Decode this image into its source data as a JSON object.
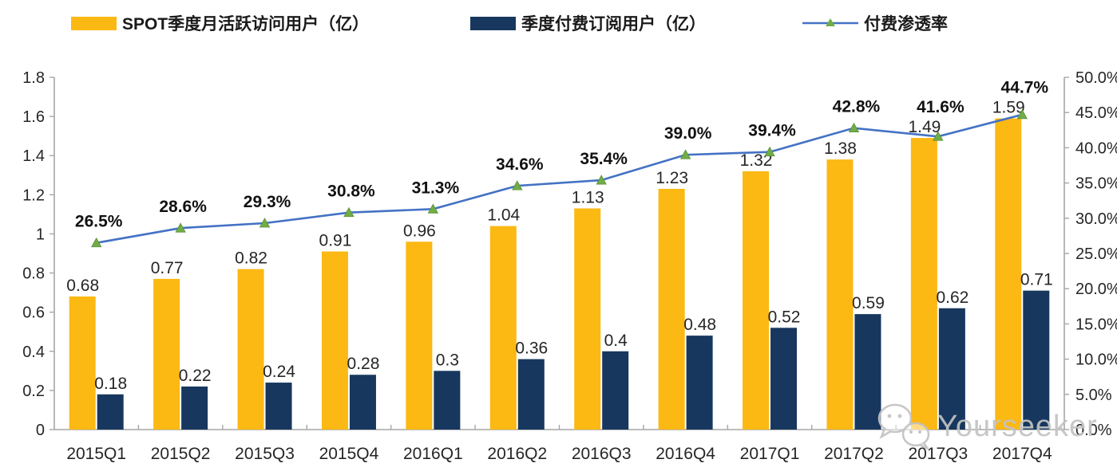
{
  "legend": [
    {
      "label": "SPOT季度月活跃访问用户（亿）",
      "color": "#FCB813",
      "type": "bar"
    },
    {
      "label": "季度付费订阅用户（亿）",
      "color": "#17375E",
      "type": "bar"
    },
    {
      "label": "付费渗透率",
      "color": "#4472C4",
      "marker_color": "#70AD47",
      "type": "line"
    }
  ],
  "chart_data": {
    "type": "bar+line combo",
    "categories": [
      "2015Q1",
      "2015Q2",
      "2015Q3",
      "2015Q4",
      "2016Q1",
      "2016Q2",
      "2016Q3",
      "2016Q4",
      "2017Q1",
      "2017Q2",
      "2017Q3",
      "2017Q4"
    ],
    "series": [
      {
        "name": "SPOT季度月活跃访问用户（亿）",
        "type": "bar",
        "axis": "left",
        "color": "#FCB813",
        "values": [
          0.68,
          0.77,
          0.82,
          0.91,
          0.96,
          1.04,
          1.13,
          1.23,
          1.32,
          1.38,
          1.49,
          1.59
        ],
        "labels": [
          "0.68",
          "0.77",
          "0.82",
          "0.91",
          "0.96",
          "1.04",
          "1.13",
          "1.23",
          "1.32",
          "1.38",
          "1.49",
          "1.59"
        ]
      },
      {
        "name": "季度付费订阅用户（亿）",
        "type": "bar",
        "axis": "left",
        "color": "#17375E",
        "values": [
          0.18,
          0.22,
          0.24,
          0.28,
          0.3,
          0.36,
          0.4,
          0.48,
          0.52,
          0.59,
          0.62,
          0.71
        ],
        "labels": [
          "0.18",
          "0.22",
          "0.24",
          "0.28",
          "0.3",
          "0.36",
          "0.4",
          "0.48",
          "0.52",
          "0.59",
          "0.62",
          "0.71"
        ]
      },
      {
        "name": "付费渗透率",
        "type": "line",
        "axis": "right",
        "color": "#4472C4",
        "marker": "triangle",
        "marker_color": "#70AD47",
        "values": [
          26.5,
          28.6,
          29.3,
          30.8,
          31.3,
          34.6,
          35.4,
          39.0,
          39.4,
          42.8,
          41.6,
          44.7
        ],
        "labels": [
          "26.5%",
          "28.6%",
          "29.3%",
          "30.8%",
          "31.3%",
          "34.6%",
          "35.4%",
          "39.0%",
          "39.4%",
          "42.8%",
          "41.6%",
          "44.7%"
        ]
      }
    ],
    "left_axis": {
      "min": 0,
      "max": 1.8,
      "step": 0.2,
      "ticks": [
        "0",
        "0.2",
        "0.4",
        "0.6",
        "0.8",
        "1",
        "1.2",
        "1.4",
        "1.6",
        "1.8"
      ]
    },
    "right_axis": {
      "min": 0,
      "max": 50,
      "step": 5,
      "ticks": [
        "0.0%",
        "5.0%",
        "10.0%",
        "15.0%",
        "20.0%",
        "25.0%",
        "30.0%",
        "35.0%",
        "40.0%",
        "45.0%",
        "50.0%"
      ]
    },
    "grid": "off",
    "legend_position": "top",
    "title": ""
  },
  "watermark": {
    "text": "Yourseeker",
    "icon": "wechat-icon"
  }
}
